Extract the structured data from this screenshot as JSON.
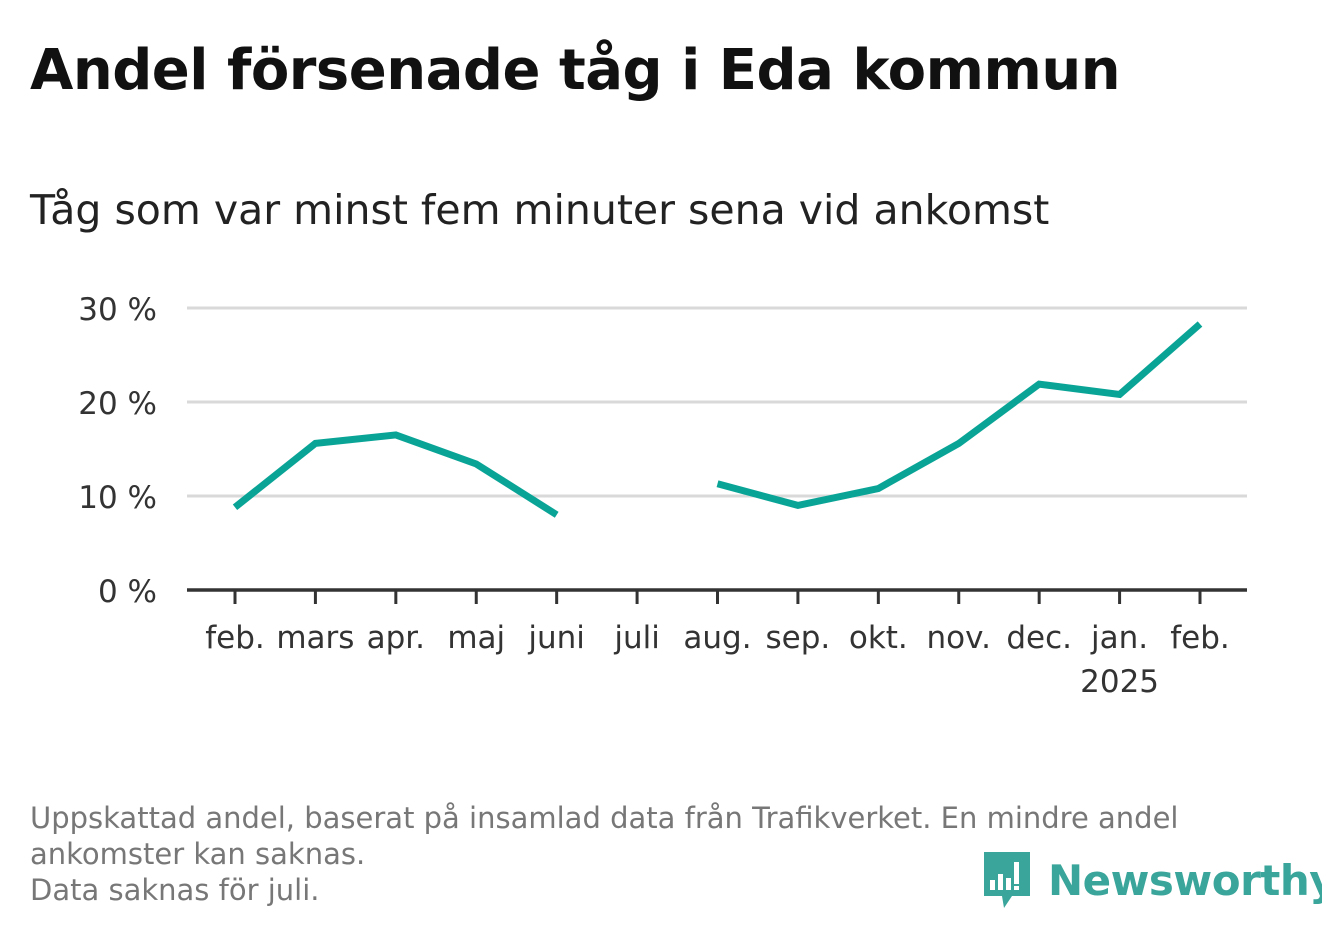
{
  "title": "Andel försenade tåg i Eda kommun",
  "subtitle": "Tåg som var minst fem minuter sena vid ankomst",
  "footnote": {
    "line1": "Uppskattad andel, baserat på insamlad data från Trafikverket. En mindre andel",
    "line2": "ankomster kan saknas.",
    "line3": "Data saknas för juli."
  },
  "brand": {
    "name": "Newsworthy",
    "icon": "newsworthy-logo-icon"
  },
  "colors": {
    "line": "#0aa497",
    "grid": "#d9d9d9",
    "axis": "#333333",
    "brand": "#3aa59a"
  },
  "chart_data": {
    "type": "line",
    "categories": [
      "feb.",
      "mars",
      "apr.",
      "maj",
      "juni",
      "juli",
      "aug.",
      "sep.",
      "okt.",
      "nov.",
      "dec.",
      "jan.",
      "feb."
    ],
    "year_labels": {
      "11": "2025"
    },
    "series": [
      {
        "values": [
          8.8,
          15.6,
          16.5,
          13.4,
          8.0,
          null,
          11.3,
          9.0,
          10.8,
          15.6,
          21.9,
          20.8,
          28.3
        ]
      }
    ],
    "yticks": [
      0,
      10,
      20,
      30
    ],
    "ytick_labels": [
      "0 %",
      "10 %",
      "20 %",
      "30 %"
    ],
    "ylim": [
      0,
      30
    ],
    "grid": true,
    "missing": [
      "juli"
    ]
  }
}
